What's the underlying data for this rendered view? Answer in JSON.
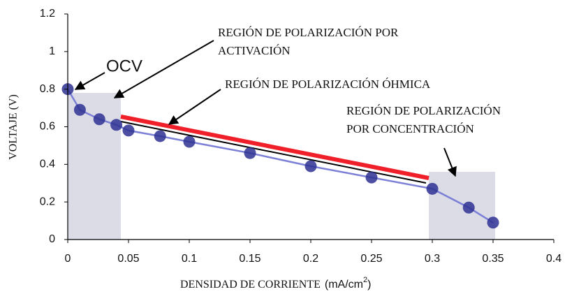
{
  "chart_data": {
    "type": "scatter",
    "x": [
      0,
      0.01,
      0.026,
      0.04,
      0.05,
      0.076,
      0.1,
      0.15,
      0.2,
      0.25,
      0.3,
      0.33,
      0.35
    ],
    "values": [
      0.8,
      0.69,
      0.64,
      0.61,
      0.58,
      0.55,
      0.52,
      0.46,
      0.39,
      0.33,
      0.27,
      0.17,
      0.09
    ],
    "color": "#2e3192",
    "line_color": "#7b80d6",
    "xlim": [
      0,
      0.4
    ],
    "xticks": [
      0,
      0.05,
      0.1,
      0.15,
      0.2,
      0.25,
      0.3,
      0.35,
      0.4
    ],
    "ylim": [
      0,
      1.2
    ],
    "yticks": [
      0,
      0.2,
      0.4,
      0.6,
      0.8,
      1,
      1.2
    ],
    "y_label": "VOLTAJE (V)",
    "x_label": [
      "DENSIDAD DE CORRIENTE",
      "(mA/cm",
      "2",
      ")"
    ],
    "annotations": {
      "ocv": "OCV",
      "activation": [
        "REGIÓN DE  POLARIZACIÓN POR",
        "ACTIVACIÓN"
      ],
      "ohmic": "REGIÓN DE POLARIZACIÓN ÓHMICA",
      "concentration": [
        "REGIÓN DE POLARIZACIÓN",
        "POR CONCENTRACIÓN"
      ]
    }
  }
}
